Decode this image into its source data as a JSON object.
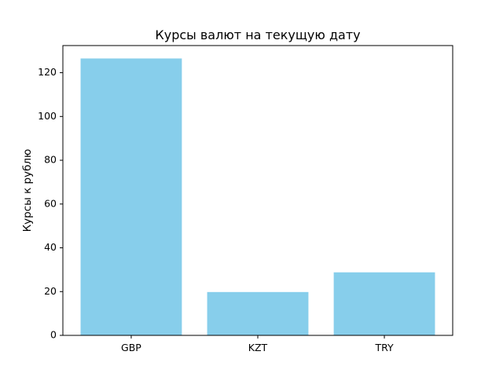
{
  "chart_data": {
    "type": "bar",
    "title": "Курсы валют на текущую дату",
    "xlabel": "",
    "ylabel": "Курсы к рублю",
    "categories": [
      "GBP",
      "KZT",
      "TRY"
    ],
    "values": [
      126.5,
      19.8,
      28.8
    ],
    "ylim": [
      0,
      132.4
    ],
    "yticks": [
      0,
      20,
      40,
      60,
      80,
      100,
      120
    ],
    "bar_color": "#87ceeb",
    "grid": false,
    "legend": "none"
  }
}
